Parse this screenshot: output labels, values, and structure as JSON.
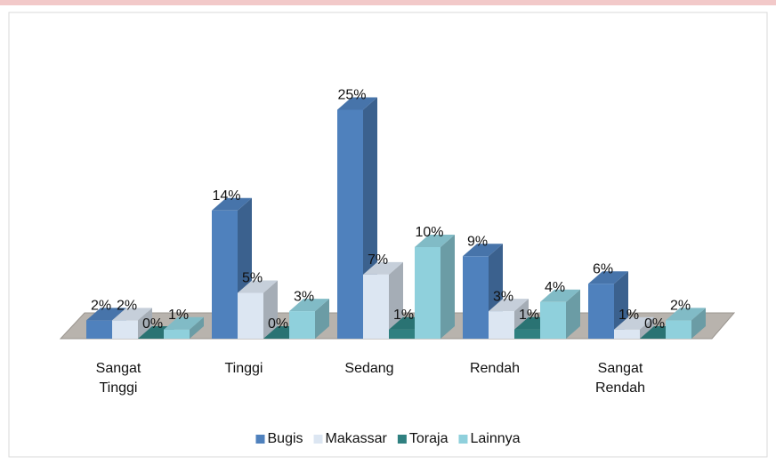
{
  "chart_data": {
    "type": "bar3d",
    "categories": [
      "Sangat Tinggi",
      "Tinggi",
      "Sedang",
      "Rendah",
      "Sangat Rendah"
    ],
    "series": [
      {
        "name": "Bugis",
        "color": "#4f81bd",
        "values": [
          2,
          14,
          25,
          9,
          6
        ],
        "value_labels": [
          "2%",
          "14%",
          "25%",
          "9%",
          "6%"
        ]
      },
      {
        "name": "Makassar",
        "color": "#dce6f2",
        "values": [
          2,
          5,
          7,
          3,
          1
        ],
        "value_labels": [
          "2%",
          "5%",
          "7%",
          "3%",
          "1%"
        ]
      },
      {
        "name": "Toraja",
        "color": "#2f8080",
        "values": [
          0,
          0,
          1,
          1,
          0
        ],
        "value_labels": [
          "0%",
          "0%",
          "1%",
          "1%",
          "0%"
        ]
      },
      {
        "name": "Lainnya",
        "color": "#8fd0dc",
        "values": [
          1,
          3,
          10,
          4,
          2
        ],
        "value_labels": [
          "1%",
          "3%",
          "10%",
          "4%",
          "2%"
        ]
      }
    ],
    "legend": "bottom"
  }
}
